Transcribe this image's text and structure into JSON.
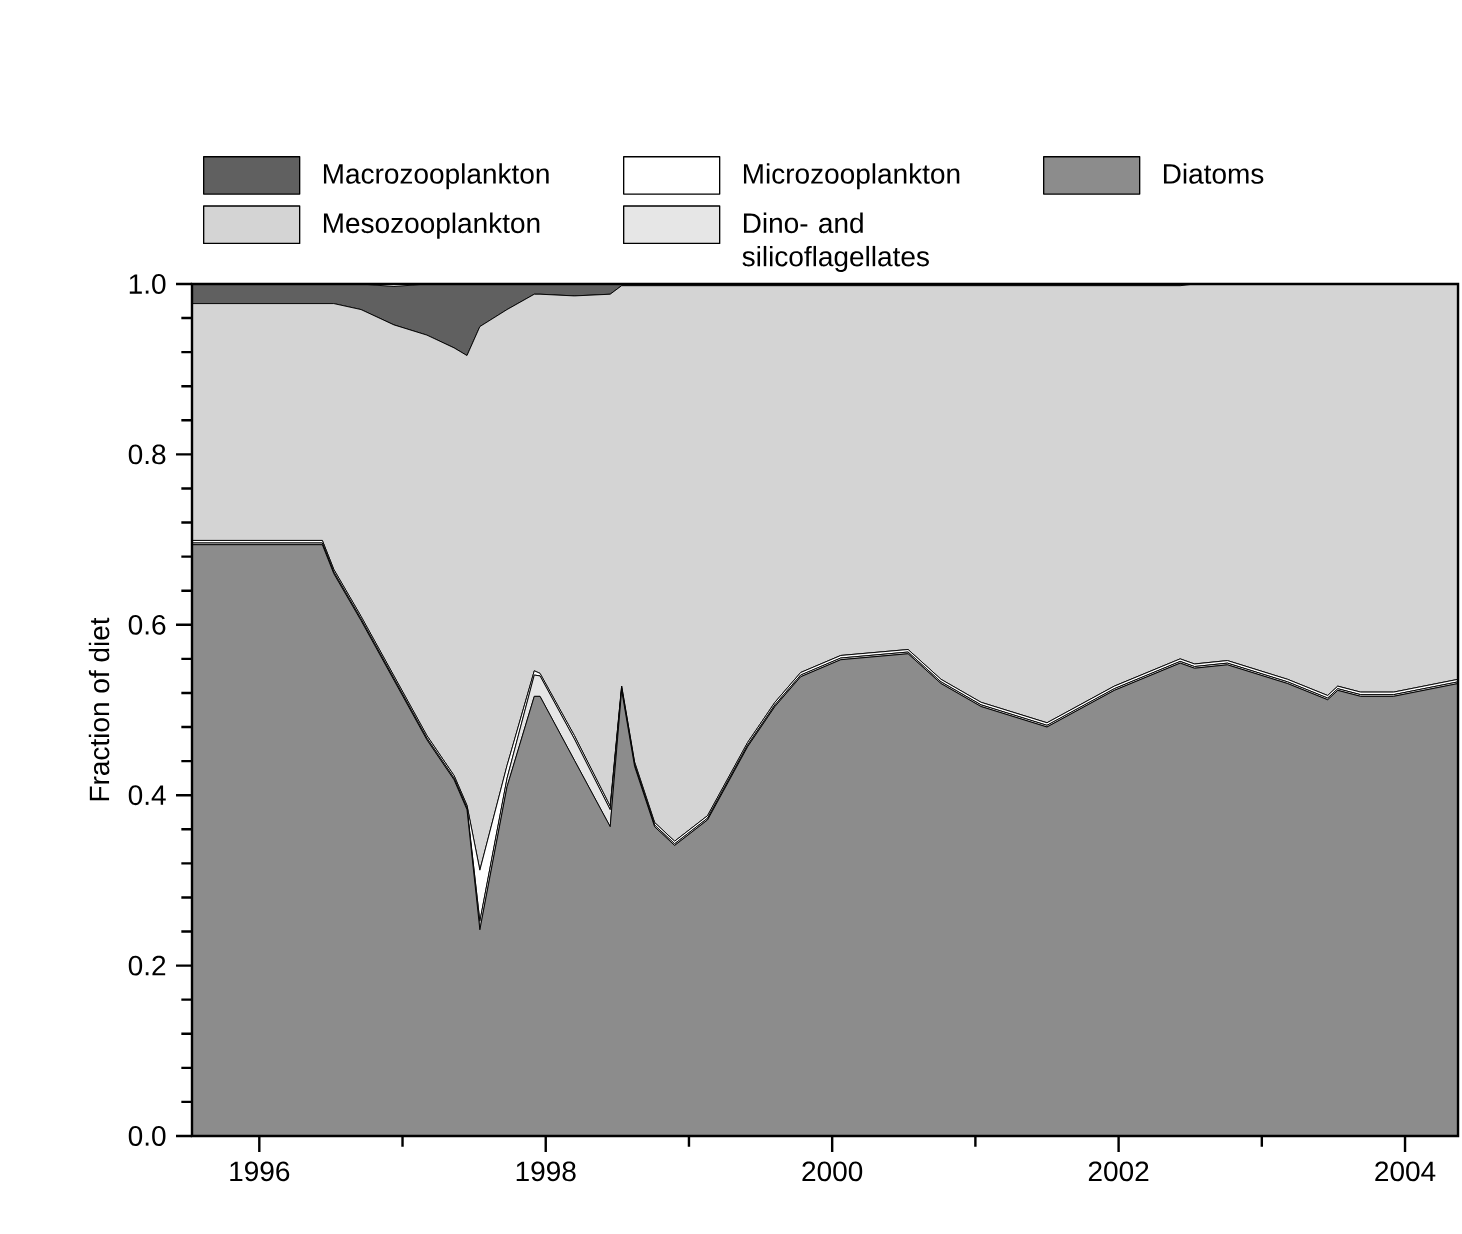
{
  "chart_data": {
    "type": "area",
    "stacked": true,
    "ylabel": "Fraction of diet",
    "legend": "top",
    "x": [
      1995.53,
      1996.44,
      1996.52,
      1996.71,
      1996.94,
      1997.17,
      1997.36,
      1997.45,
      1997.54,
      1997.73,
      1997.92,
      1997.96,
      1998.2,
      1998.45,
      1998.53,
      1998.62,
      1998.76,
      1998.9,
      1999.13,
      1999.41,
      1999.6,
      1999.78,
      2000.06,
      2000.53,
      2000.76,
      2001.04,
      2001.5,
      2001.97,
      2002.43,
      2002.53,
      2002.76,
      2003.18,
      2003.46,
      2003.53,
      2003.69,
      2003.92,
      2004.37
    ],
    "series": [
      {
        "name": "Diatoms",
        "color": "#8c8c8c",
        "values": [
          0.694,
          0.694,
          0.66,
          0.605,
          0.535,
          0.465,
          0.418,
          0.383,
          0.242,
          0.41,
          0.516,
          0.516,
          0.441,
          0.363,
          0.523,
          0.434,
          0.363,
          0.341,
          0.371,
          0.457,
          0.504,
          0.539,
          0.559,
          0.566,
          0.531,
          0.504,
          0.48,
          0.523,
          0.555,
          0.549,
          0.553,
          0.531,
          0.512,
          0.523,
          0.516,
          0.516,
          0.531
        ]
      },
      {
        "name": "Dino- and silicoflagellates",
        "color": "#e6e6e6",
        "values": [
          0.002,
          0.002,
          0.002,
          0.002,
          0.002,
          0.002,
          0.002,
          0.002,
          0.01,
          0.01,
          0.025,
          0.024,
          0.025,
          0.02,
          0.002,
          0.002,
          0.002,
          0.002,
          0.002,
          0.002,
          0.002,
          0.002,
          0.002,
          0.002,
          0.002,
          0.002,
          0.002,
          0.002,
          0.002,
          0.002,
          0.002,
          0.002,
          0.002,
          0.002,
          0.002,
          0.002,
          0.002
        ]
      },
      {
        "name": "Microzooplankton",
        "color": "#ffffff",
        "values": [
          0.003,
          0.003,
          0.003,
          0.003,
          0.003,
          0.003,
          0.003,
          0.003,
          0.06,
          0.015,
          0.005,
          0.003,
          0.004,
          0.004,
          0.003,
          0.003,
          0.003,
          0.003,
          0.003,
          0.003,
          0.003,
          0.003,
          0.003,
          0.003,
          0.003,
          0.003,
          0.003,
          0.003,
          0.003,
          0.003,
          0.003,
          0.003,
          0.003,
          0.003,
          0.003,
          0.003,
          0.003
        ]
      },
      {
        "name": "Mesozooplankton",
        "color": "#d4d4d4",
        "values": [
          0.278,
          0.278,
          0.312,
          0.36,
          0.412,
          0.47,
          0.502,
          0.528,
          0.638,
          0.535,
          0.442,
          0.445,
          0.516,
          0.601,
          0.47,
          0.559,
          0.63,
          0.652,
          0.622,
          0.536,
          0.489,
          0.454,
          0.434,
          0.427,
          0.462,
          0.489,
          0.513,
          0.47,
          0.438,
          0.446,
          0.442,
          0.464,
          0.483,
          0.472,
          0.479,
          0.479,
          0.464
        ]
      },
      {
        "name": "Macrozooplankton",
        "color": "#606060",
        "values": [
          0.023,
          0.023,
          0.023,
          0.03,
          0.045,
          0.06,
          0.075,
          0.084,
          0.05,
          0.03,
          0.012,
          0.012,
          0.014,
          0.012,
          0.002,
          0.002,
          0.002,
          0.002,
          0.002,
          0.002,
          0.002,
          0.002,
          0.002,
          0.002,
          0.002,
          0.002,
          0.002,
          0.002,
          0.002,
          0,
          0,
          0,
          0,
          0,
          0,
          0,
          0
        ]
      }
    ],
    "xlim": [
      1995.53,
      2004.37
    ],
    "ylim": [
      0,
      1
    ],
    "xticks": [
      1996,
      1998,
      2000,
      2002,
      2004
    ],
    "yticks": [
      {
        "value": 0,
        "label": "0.0"
      },
      {
        "value": 0.2,
        "label": "0.2"
      },
      {
        "value": 0.4,
        "label": "0.4"
      },
      {
        "value": 0.6,
        "label": "0.6"
      },
      {
        "value": 0.8,
        "label": "0.8"
      },
      {
        "value": 1,
        "label": "1.0"
      }
    ]
  }
}
